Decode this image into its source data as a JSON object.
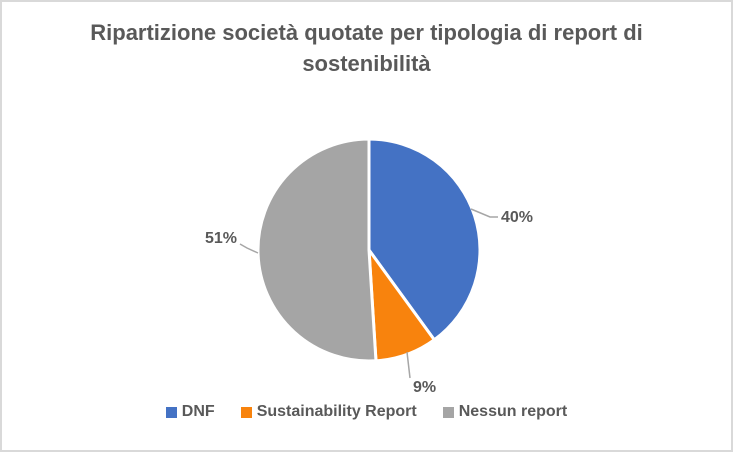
{
  "frame": {
    "background": "#FFFFFF",
    "border_color": "#D9D9D9"
  },
  "chart_title": "Ripartizione società quotate per tipologia di report di sostenibilità",
  "chart_data": {
    "type": "pie",
    "title": "Ripartizione società quotate per tipologia di report di sostenibilità",
    "categories": [
      "DNF",
      "Sustainability Report",
      "Nessun report"
    ],
    "values": [
      40,
      9,
      51
    ],
    "value_unit": "%",
    "data_labels": [
      "40%",
      "9%",
      "51%"
    ],
    "colors": [
      "#4472C4",
      "#F8830D",
      "#A5A5A5"
    ],
    "start_angle_deg": 0,
    "direction": "clockwise",
    "legend_position": "bottom",
    "title_color": "#595959",
    "label_color": "#595959",
    "leader_line_color": "#A6A6A6",
    "slice_border_color": "#FFFFFF"
  },
  "legend": {
    "items": [
      {
        "label": "DNF",
        "color": "#4472C4"
      },
      {
        "label": "Sustainability Report",
        "color": "#F8830D"
      },
      {
        "label": "Nessun report",
        "color": "#A5A5A5"
      }
    ]
  }
}
